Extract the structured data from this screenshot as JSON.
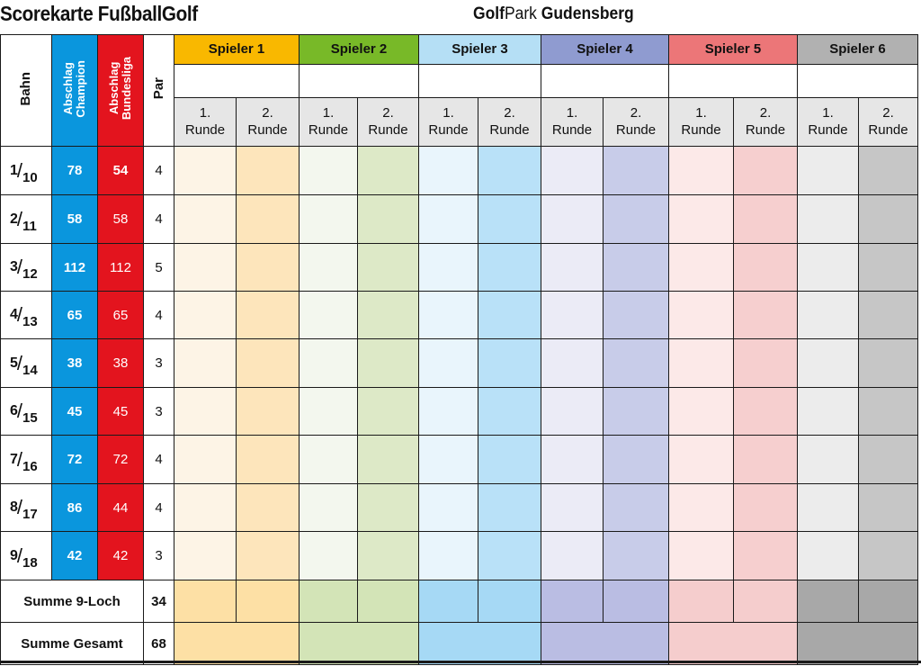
{
  "header": {
    "title": "Scorekarte FußballGolf",
    "brand_part1": "Golf",
    "brand_part2": "Park",
    "brand_part3": " Gudensberg"
  },
  "columns": {
    "bahn": "Bahn",
    "champion": "Abschlag\nChampion",
    "bundesliga": "Abschlag\nBundesliga",
    "par": "Par"
  },
  "players": [
    {
      "label": "Spieler 1",
      "round1": "1.\nRunde",
      "round2": "2.\nRunde"
    },
    {
      "label": "Spieler 2",
      "round1": "1.\nRunde",
      "round2": "2.\nRunde"
    },
    {
      "label": "Spieler 3",
      "round1": "1.\nRunde",
      "round2": "2.\nRunde"
    },
    {
      "label": "Spieler 4",
      "round1": "1.\nRunde",
      "round2": "2.\nRunde"
    },
    {
      "label": "Spieler 5",
      "round1": "1.\nRunde",
      "round2": "2.\nRunde"
    },
    {
      "label": "Spieler 6",
      "round1": "1.\nRunde",
      "round2": "2.\nRunde"
    }
  ],
  "holes": [
    {
      "first": "1",
      "second": "10",
      "champion": "78",
      "bundesliga": "54",
      "par": "4"
    },
    {
      "first": "2",
      "second": "11",
      "champion": "58",
      "bundesliga": "58",
      "par": "4"
    },
    {
      "first": "3",
      "second": "12",
      "champion": "112",
      "bundesliga": "112",
      "par": "5"
    },
    {
      "first": "4",
      "second": "13",
      "champion": "65",
      "bundesliga": "65",
      "par": "4"
    },
    {
      "first": "5",
      "second": "14",
      "champion": "38",
      "bundesliga": "38",
      "par": "3"
    },
    {
      "first": "6",
      "second": "15",
      "champion": "45",
      "bundesliga": "45",
      "par": "3"
    },
    {
      "first": "7",
      "second": "16",
      "champion": "72",
      "bundesliga": "72",
      "par": "4"
    },
    {
      "first": "8",
      "second": "17",
      "champion": "86",
      "bundesliga": "44",
      "par": "4"
    },
    {
      "first": "9",
      "second": "18",
      "champion": "42",
      "bundesliga": "42",
      "par": "3"
    }
  ],
  "summary": {
    "nine_label": "Summe 9-Loch",
    "nine_par": "34",
    "total_label": "Summe Gesamt",
    "total_par": "68"
  },
  "colors": {
    "champion": "#0a96dd",
    "bundesliga": "#e3141e",
    "player1": "#f9b800",
    "player2": "#78b928",
    "player3": "#b5dff5",
    "player4": "#8f9bd0",
    "player5": "#ec7678",
    "player6": "#b1b1b1"
  }
}
